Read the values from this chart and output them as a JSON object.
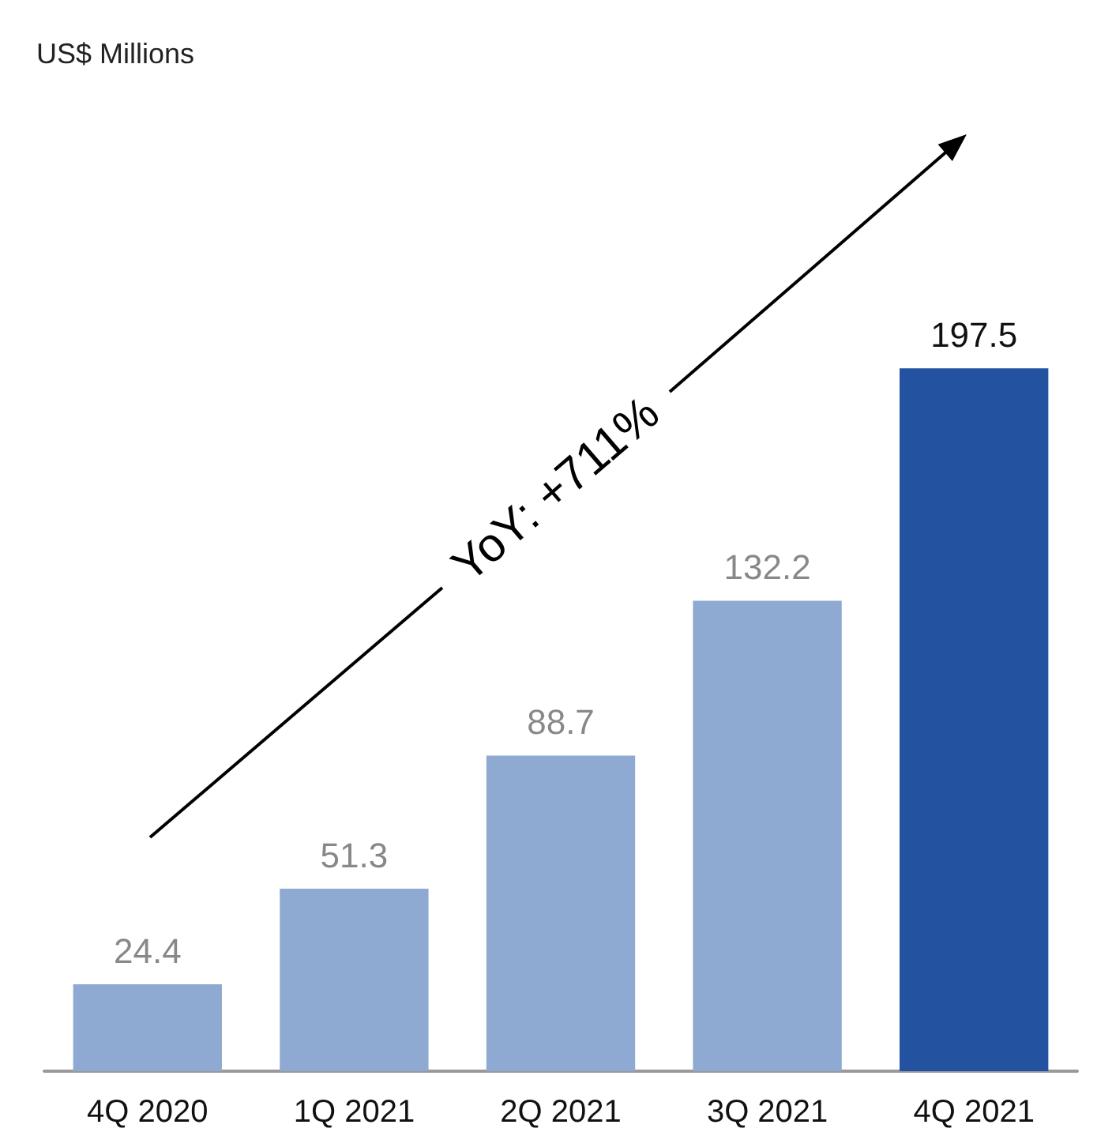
{
  "chart_data": {
    "type": "bar",
    "categories": [
      "4Q 2020",
      "1Q 2021",
      "2Q 2021",
      "3Q 2021",
      "4Q 2021"
    ],
    "values": [
      24.4,
      51.3,
      88.7,
      132.2,
      197.5
    ],
    "colors": [
      "#8faad2",
      "#8faad2",
      "#8faad2",
      "#8faad2",
      "#2353a0"
    ],
    "data_labels": true,
    "grid": false,
    "annotations": [
      "US$ Millions",
      "YoY: +711%"
    ]
  }
}
